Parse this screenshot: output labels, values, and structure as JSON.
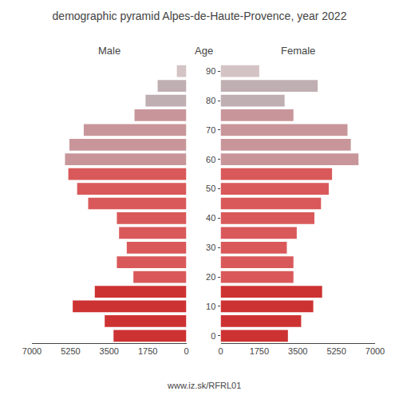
{
  "chart_data": {
    "type": "bar",
    "orientation": "horizontal",
    "title": "demographic pyramid Alpes-de-Haute-Provence, year 2022",
    "ylabel": "Age",
    "categories": [
      "0",
      null,
      "10",
      null,
      "20",
      null,
      "30",
      null,
      "40",
      null,
      "50",
      null,
      "60",
      null,
      "70",
      null,
      "80",
      null,
      "90"
    ],
    "series": [
      {
        "name": "Male",
        "values": [
          3300,
          3700,
          5150,
          4150,
          2400,
          3150,
          2700,
          3050,
          3150,
          4450,
          4950,
          5350,
          5500,
          5300,
          4650,
          2350,
          1850,
          1300,
          430
        ],
        "colors": [
          "#cd3232",
          "#cd3232",
          "#cd3232",
          "#cd3232",
          "#d9595a",
          "#d9595a",
          "#d9595a",
          "#d9595a",
          "#d9595a",
          "#d9595a",
          "#d9595a",
          "#d9595a",
          "#c8969a",
          "#c8969a",
          "#c8969a",
          "#c8969a",
          "#c0afb2",
          "#c0afb2",
          "#d4c3c5"
        ],
        "xlim": [
          7000,
          0
        ],
        "xticks": [
          7000,
          5250,
          3500,
          1750,
          0
        ]
      },
      {
        "name": "Female",
        "values": [
          3050,
          3650,
          4200,
          4600,
          3300,
          3300,
          3000,
          3450,
          4250,
          4550,
          4900,
          5050,
          6250,
          5900,
          5750,
          3300,
          2900,
          4400,
          1750
        ],
        "colors": [
          "#cd3232",
          "#cd3232",
          "#cd3232",
          "#cd3232",
          "#d9595a",
          "#d9595a",
          "#d9595a",
          "#d9595a",
          "#d9595a",
          "#d9595a",
          "#d9595a",
          "#d9595a",
          "#c8969a",
          "#c8969a",
          "#c8969a",
          "#c8969a",
          "#c0afb2",
          "#c0afb2",
          "#d4c3c5"
        ],
        "xlim": [
          0,
          7000
        ],
        "xticks": [
          0,
          1750,
          3500,
          5250,
          7000
        ]
      }
    ],
    "annotations": [
      "www.iz.sk/RFRL01"
    ],
    "grid": false
  }
}
